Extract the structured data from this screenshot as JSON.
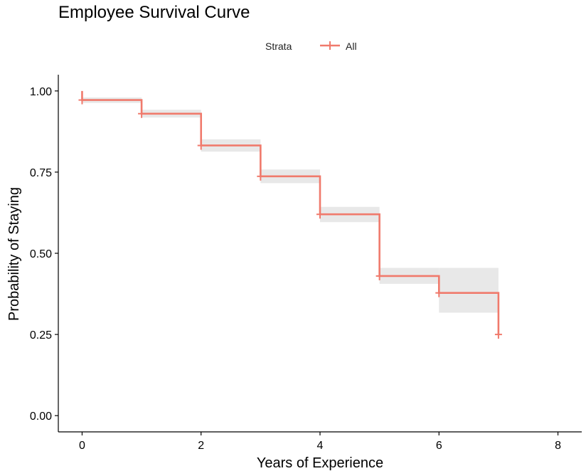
{
  "chart_data": {
    "type": "line",
    "subtype": "kaplan-meier-step",
    "title": "Employee Survival Curve",
    "xlabel": "Years of Experience",
    "ylabel": "Probability of Staying",
    "xlim": [
      -0.4,
      8.4
    ],
    "ylim": [
      -0.05,
      1.05
    ],
    "x_ticks": [
      0,
      2,
      4,
      6,
      8
    ],
    "x_tick_labels": [
      "0",
      "2",
      "4",
      "6",
      "8"
    ],
    "y_ticks": [
      0,
      0.25,
      0.5,
      0.75,
      1.0
    ],
    "y_tick_labels": [
      "0.00",
      "0.25",
      "0.50",
      "0.75",
      "1.00"
    ],
    "grid": false,
    "legend": {
      "position": "top",
      "title": "Strata",
      "entries": [
        "All"
      ]
    },
    "series": [
      {
        "name": "All",
        "color": "#f07a6c",
        "steps": [
          {
            "start": 0,
            "end": 1,
            "survival": 0.972,
            "lower": 0.963,
            "upper": 0.98
          },
          {
            "start": 1,
            "end": 2,
            "survival": 0.93,
            "lower": 0.918,
            "upper": 0.942
          },
          {
            "start": 2,
            "end": 3,
            "survival": 0.832,
            "lower": 0.813,
            "upper": 0.851
          },
          {
            "start": 3,
            "end": 4,
            "survival": 0.737,
            "lower": 0.716,
            "upper": 0.758
          },
          {
            "start": 4,
            "end": 5,
            "survival": 0.62,
            "lower": 0.596,
            "upper": 0.643
          },
          {
            "start": 5,
            "end": 6,
            "survival": 0.43,
            "lower": 0.406,
            "upper": 0.455
          },
          {
            "start": 6,
            "end": 7,
            "survival": 0.378,
            "lower": 0.317,
            "upper": 0.455
          }
        ],
        "final_drop": {
          "x": 7,
          "survival": 0.25
        },
        "censor_marks": [
          {
            "x": 0,
            "y": 0.972
          },
          {
            "x": 1,
            "y": 0.93
          },
          {
            "x": 2,
            "y": 0.832
          },
          {
            "x": 3,
            "y": 0.737
          },
          {
            "x": 4,
            "y": 0.62
          },
          {
            "x": 5,
            "y": 0.43
          },
          {
            "x": 6,
            "y": 0.378
          },
          {
            "x": 7,
            "y": 0.25
          }
        ]
      }
    ],
    "ci_fill_color": "#e8e8e8"
  }
}
